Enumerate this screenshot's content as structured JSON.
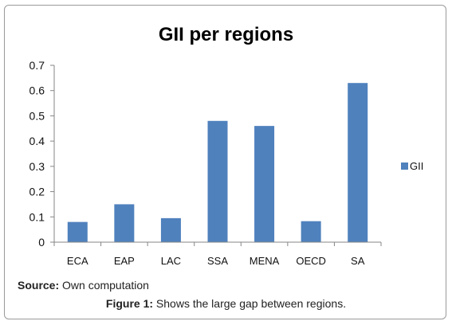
{
  "chart_data": {
    "type": "bar",
    "title": "GII per regions",
    "categories": [
      "ECA",
      "EAP",
      "LAC",
      "SSA",
      "MENA",
      "OECD",
      "SA"
    ],
    "series": [
      {
        "name": "GII",
        "values": [
          0.08,
          0.15,
          0.095,
          0.48,
          0.46,
          0.083,
          0.63
        ],
        "color": "#4F81BD"
      }
    ],
    "ylim": [
      0,
      0.7
    ],
    "yticks": [
      "0",
      "0.1",
      "0.2",
      "0.3",
      "0.4",
      "0.5",
      "0.6",
      "0.7"
    ],
    "xlabel": "",
    "ylabel": "",
    "grid": false,
    "legend": "right"
  },
  "source": {
    "label": "Source:",
    "text": "Own computation"
  },
  "caption": {
    "label": "Figure 1:",
    "text": "Shows the large gap between regions."
  }
}
